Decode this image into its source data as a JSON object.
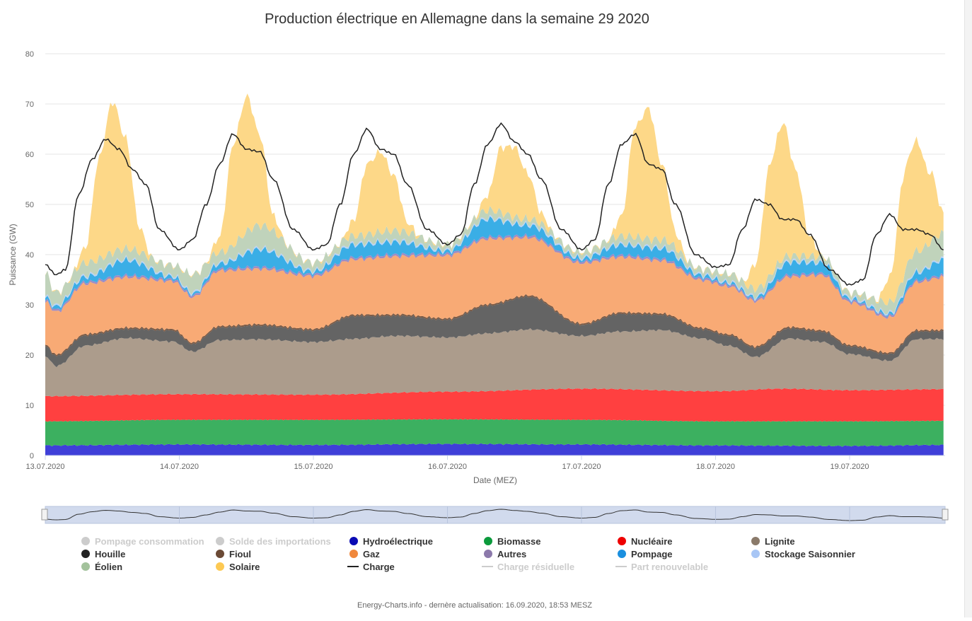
{
  "chart_data": {
    "type": "area",
    "title": "Production électrique en Allemagne dans la semaine 29 2020",
    "xlabel": "Date (MEZ)",
    "ylabel": "Puissance (GW)",
    "ylim": [
      0,
      80
    ],
    "yticks": [
      0,
      10,
      20,
      30,
      40,
      50,
      60,
      70,
      80
    ],
    "xlim_days": [
      0,
      6.7
    ],
    "xticks": [
      "13.07.2020",
      "14.07.2020",
      "15.07.2020",
      "16.07.2020",
      "17.07.2020",
      "18.07.2020",
      "19.07.2020"
    ],
    "grid": true,
    "legend_position": "bottom",
    "footer": "Energy-Charts.info - dernère actualisation: 16.09.2020, 18:53 MESZ",
    "legend": [
      {
        "name": "Pompage consommation",
        "color": "#cccccc",
        "visible": false,
        "symbol": "dot"
      },
      {
        "name": "Solde des importations",
        "color": "#cccccc",
        "visible": false,
        "symbol": "dot"
      },
      {
        "name": "Hydroélectrique",
        "color": "#0a0ab4",
        "visible": true,
        "symbol": "dot"
      },
      {
        "name": "Biomasse",
        "color": "#0b9a3c",
        "visible": true,
        "symbol": "dot"
      },
      {
        "name": "Nucléaire",
        "color": "#ee0000",
        "visible": true,
        "symbol": "dot"
      },
      {
        "name": "Lignite",
        "color": "#8a7a6a",
        "visible": true,
        "symbol": "dot"
      },
      {
        "name": "Houille",
        "color": "#222222",
        "visible": true,
        "symbol": "dot"
      },
      {
        "name": "Fioul",
        "color": "#6b4a35",
        "visible": true,
        "symbol": "dot"
      },
      {
        "name": "Gaz",
        "color": "#f0883c",
        "visible": true,
        "symbol": "dot"
      },
      {
        "name": "Autres",
        "color": "#8c79ab",
        "visible": true,
        "symbol": "dot"
      },
      {
        "name": "Pompage",
        "color": "#1a8fdf",
        "visible": true,
        "symbol": "dot"
      },
      {
        "name": "Stockage Saisonnier",
        "color": "#a8c6f5",
        "visible": true,
        "symbol": "dot"
      },
      {
        "name": "Éolien",
        "color": "#a3c29c",
        "visible": true,
        "symbol": "dot"
      },
      {
        "name": "Solaire",
        "color": "#fdc953",
        "visible": true,
        "symbol": "dot"
      },
      {
        "name": "Charge",
        "color": "#222222",
        "visible": true,
        "symbol": "line"
      },
      {
        "name": "Charge résiduelle",
        "color": "#cccccc",
        "visible": false,
        "symbol": "line"
      },
      {
        "name": "Part renouvelable",
        "color": "#cccccc",
        "visible": false,
        "symbol": "line"
      }
    ],
    "stack": [
      {
        "name": "Hydroélectrique",
        "color": "#3f3fd8",
        "values": [
          [
            0,
            2.0
          ],
          [
            1,
            2.2
          ],
          [
            2,
            2.1
          ],
          [
            3,
            2.3
          ],
          [
            4,
            2.2
          ],
          [
            5,
            2.0
          ],
          [
            6,
            1.9
          ],
          [
            6.7,
            2.1
          ]
        ]
      },
      {
        "name": "Biomasse",
        "color": "#3cb060",
        "values": [
          [
            0,
            4.8
          ],
          [
            1,
            4.9
          ],
          [
            2,
            5.0
          ],
          [
            3,
            4.9
          ],
          [
            4,
            4.9
          ],
          [
            5,
            4.8
          ],
          [
            6,
            4.9
          ],
          [
            6.7,
            4.8
          ]
        ]
      },
      {
        "name": "Nucléaire",
        "color": "#ff4040",
        "values": [
          [
            0,
            5.0
          ],
          [
            1,
            5.1
          ],
          [
            2,
            5.0
          ],
          [
            3,
            5.5
          ],
          [
            4,
            6.2
          ],
          [
            5,
            6.0
          ],
          [
            5.5,
            6.5
          ],
          [
            6,
            6.2
          ],
          [
            6.7,
            6.3
          ]
        ]
      },
      {
        "name": "Lignite",
        "color": "#ac9c8c",
        "values": [
          [
            0,
            8.0
          ],
          [
            0.08,
            6.0
          ],
          [
            0.3,
            10.0
          ],
          [
            0.6,
            11.3
          ],
          [
            0.95,
            10.5
          ],
          [
            1.1,
            8.5
          ],
          [
            1.3,
            10.8
          ],
          [
            1.6,
            11.0
          ],
          [
            2.0,
            10.5
          ],
          [
            2.3,
            11.0
          ],
          [
            2.6,
            11.3
          ],
          [
            3.0,
            10.8
          ],
          [
            3.3,
            11.5
          ],
          [
            3.6,
            12.0
          ],
          [
            4.0,
            10.5
          ],
          [
            4.3,
            11.5
          ],
          [
            4.6,
            12.0
          ],
          [
            4.9,
            10.5
          ],
          [
            5.1,
            9.0
          ],
          [
            5.3,
            6.5
          ],
          [
            5.55,
            10.0
          ],
          [
            5.8,
            9.5
          ],
          [
            6.0,
            7.2
          ],
          [
            6.3,
            5.8
          ],
          [
            6.5,
            10.0
          ],
          [
            6.7,
            10.0
          ]
        ]
      },
      {
        "name": "Houille",
        "color": "#646464",
        "values": [
          [
            0,
            2.0
          ],
          [
            0.08,
            2.0
          ],
          [
            0.3,
            2.0
          ],
          [
            0.6,
            1.8
          ],
          [
            0.95,
            2.2
          ],
          [
            1.1,
            1.5
          ],
          [
            1.3,
            2.5
          ],
          [
            1.6,
            2.7
          ],
          [
            2.0,
            2.3
          ],
          [
            2.3,
            4.5
          ],
          [
            2.6,
            4.0
          ],
          [
            3.0,
            3.5
          ],
          [
            3.3,
            5.5
          ],
          [
            3.6,
            6.5
          ],
          [
            4.0,
            2.2
          ],
          [
            4.3,
            3.5
          ],
          [
            4.6,
            3.0
          ],
          [
            4.9,
            1.8
          ],
          [
            5.1,
            2.0
          ],
          [
            5.3,
            1.8
          ],
          [
            5.55,
            2.0
          ],
          [
            5.8,
            2.0
          ],
          [
            6.0,
            1.5
          ],
          [
            6.3,
            1.3
          ],
          [
            6.5,
            1.5
          ],
          [
            6.7,
            1.5
          ]
        ]
      },
      {
        "name": "Fioul",
        "color": "#7b5a45",
        "values": [
          [
            0,
            0.3
          ],
          [
            6.7,
            0.3
          ]
        ]
      },
      {
        "name": "Gaz",
        "color": "#f8aa75",
        "values": [
          [
            0,
            8.5
          ],
          [
            0.08,
            8.5
          ],
          [
            0.3,
            10.0
          ],
          [
            0.6,
            10.0
          ],
          [
            0.95,
            9.5
          ],
          [
            1.1,
            9.0
          ],
          [
            1.3,
            11.0
          ],
          [
            1.6,
            11.0
          ],
          [
            2.0,
            10.5
          ],
          [
            2.3,
            11.0
          ],
          [
            2.6,
            11.5
          ],
          [
            3.0,
            12.5
          ],
          [
            3.3,
            13.0
          ],
          [
            3.6,
            11.5
          ],
          [
            4.0,
            12.0
          ],
          [
            4.3,
            11.0
          ],
          [
            4.6,
            10.5
          ],
          [
            4.9,
            9.5
          ],
          [
            5.1,
            9.5
          ],
          [
            5.3,
            9.0
          ],
          [
            5.55,
            10.0
          ],
          [
            5.8,
            11.0
          ],
          [
            6.0,
            8.5
          ],
          [
            6.3,
            7.0
          ],
          [
            6.5,
            9.5
          ],
          [
            6.7,
            10.5
          ]
        ]
      },
      {
        "name": "Autres",
        "color": "#9d8cc4",
        "values": [
          [
            0,
            0.4
          ],
          [
            6.7,
            0.4
          ]
        ]
      },
      {
        "name": "Pompage",
        "color": "#3aaee6",
        "values": [
          [
            0,
            0.5
          ],
          [
            0.3,
            1.0
          ],
          [
            0.6,
            3.0
          ],
          [
            0.95,
            0.5
          ],
          [
            1.1,
            0.3
          ],
          [
            1.3,
            1.0
          ],
          [
            1.6,
            3.5
          ],
          [
            2.0,
            0.5
          ],
          [
            2.3,
            2.5
          ],
          [
            2.6,
            2.5
          ],
          [
            3.0,
            0.5
          ],
          [
            3.3,
            3.5
          ],
          [
            3.6,
            2.0
          ],
          [
            4.0,
            0.5
          ],
          [
            4.3,
            2.0
          ],
          [
            4.6,
            2.0
          ],
          [
            4.9,
            0.5
          ],
          [
            5.1,
            0.3
          ],
          [
            5.3,
            0.3
          ],
          [
            5.55,
            2.5
          ],
          [
            5.8,
            2.0
          ],
          [
            6.0,
            0.3
          ],
          [
            6.3,
            0.3
          ],
          [
            6.5,
            1.5
          ],
          [
            6.7,
            3.0
          ]
        ]
      },
      {
        "name": "Stockage Saisonnier",
        "color": "#b7d2f7",
        "values": [
          [
            0,
            0.3
          ],
          [
            6.7,
            0.3
          ]
        ]
      },
      {
        "name": "Éolien",
        "color": "#c0d3bb",
        "values": [
          [
            0,
            4.5
          ],
          [
            0.08,
            2.5
          ],
          [
            0.3,
            2.5
          ],
          [
            0.6,
            2.0
          ],
          [
            0.95,
            2.0
          ],
          [
            1.1,
            3.5
          ],
          [
            1.3,
            2.0
          ],
          [
            1.6,
            4.5
          ],
          [
            2.0,
            1.5
          ],
          [
            2.3,
            1.5
          ],
          [
            2.6,
            2.0
          ],
          [
            3.0,
            1.0
          ],
          [
            3.3,
            1.5
          ],
          [
            3.6,
            1.0
          ],
          [
            4.0,
            1.0
          ],
          [
            4.3,
            1.5
          ],
          [
            4.6,
            1.5
          ],
          [
            4.9,
            1.0
          ],
          [
            5.1,
            1.5
          ],
          [
            5.3,
            1.5
          ],
          [
            5.55,
            1.0
          ],
          [
            5.8,
            1.0
          ],
          [
            6.0,
            1.0
          ],
          [
            6.3,
            2.0
          ],
          [
            6.5,
            4.0
          ],
          [
            6.7,
            5.0
          ]
        ]
      },
      {
        "name": "Solaire",
        "color": "#fdd888",
        "values": [
          [
            0,
            0
          ],
          [
            0.2,
            0
          ],
          [
            0.3,
            3
          ],
          [
            0.4,
            20
          ],
          [
            0.5,
            30
          ],
          [
            0.6,
            22
          ],
          [
            0.7,
            5
          ],
          [
            0.8,
            0
          ],
          [
            1.2,
            0
          ],
          [
            1.3,
            3
          ],
          [
            1.4,
            20
          ],
          [
            1.5,
            27
          ],
          [
            1.6,
            18
          ],
          [
            1.7,
            3
          ],
          [
            1.8,
            0
          ],
          [
            2.2,
            0
          ],
          [
            2.3,
            3
          ],
          [
            2.4,
            14
          ],
          [
            2.5,
            16
          ],
          [
            2.6,
            11
          ],
          [
            2.7,
            2
          ],
          [
            2.8,
            0
          ],
          [
            3.2,
            0
          ],
          [
            3.3,
            3
          ],
          [
            3.4,
            13
          ],
          [
            3.5,
            14
          ],
          [
            3.6,
            9
          ],
          [
            3.7,
            2
          ],
          [
            3.8,
            0
          ],
          [
            4.2,
            0
          ],
          [
            4.3,
            4
          ],
          [
            4.4,
            22
          ],
          [
            4.5,
            26
          ],
          [
            4.6,
            15
          ],
          [
            4.7,
            3
          ],
          [
            4.8,
            0
          ],
          [
            5.2,
            0
          ],
          [
            5.3,
            5
          ],
          [
            5.4,
            22
          ],
          [
            5.5,
            27
          ],
          [
            5.6,
            17
          ],
          [
            5.7,
            4
          ],
          [
            5.8,
            0
          ],
          [
            6.2,
            0
          ],
          [
            6.3,
            5
          ],
          [
            6.4,
            20
          ],
          [
            6.5,
            22
          ],
          [
            6.6,
            14
          ],
          [
            6.7,
            4
          ]
        ]
      }
    ],
    "series": [
      {
        "name": "Charge",
        "color": "#222222",
        "values": [
          [
            0,
            38
          ],
          [
            0.08,
            36
          ],
          [
            0.15,
            37
          ],
          [
            0.25,
            52
          ],
          [
            0.35,
            59
          ],
          [
            0.45,
            63
          ],
          [
            0.55,
            61
          ],
          [
            0.65,
            57
          ],
          [
            0.75,
            54
          ],
          [
            0.85,
            45
          ],
          [
            1.0,
            41
          ],
          [
            1.1,
            43
          ],
          [
            1.2,
            50
          ],
          [
            1.3,
            58
          ],
          [
            1.4,
            64
          ],
          [
            1.5,
            61
          ],
          [
            1.6,
            60.5
          ],
          [
            1.7,
            55
          ],
          [
            1.85,
            45
          ],
          [
            2.0,
            41
          ],
          [
            2.1,
            42
          ],
          [
            2.2,
            50
          ],
          [
            2.3,
            60
          ],
          [
            2.4,
            65
          ],
          [
            2.5,
            61
          ],
          [
            2.6,
            60
          ],
          [
            2.7,
            54
          ],
          [
            2.85,
            45
          ],
          [
            3.0,
            42
          ],
          [
            3.1,
            44
          ],
          [
            3.2,
            54
          ],
          [
            3.3,
            62
          ],
          [
            3.4,
            66
          ],
          [
            3.5,
            62.5
          ],
          [
            3.6,
            60
          ],
          [
            3.7,
            55
          ],
          [
            3.85,
            45
          ],
          [
            4.0,
            41
          ],
          [
            4.1,
            43
          ],
          [
            4.2,
            54
          ],
          [
            4.3,
            62
          ],
          [
            4.4,
            64
          ],
          [
            4.5,
            58
          ],
          [
            4.6,
            57
          ],
          [
            4.7,
            50
          ],
          [
            4.85,
            40
          ],
          [
            5.0,
            37.5
          ],
          [
            5.1,
            38
          ],
          [
            5.2,
            45
          ],
          [
            5.3,
            51
          ],
          [
            5.4,
            50
          ],
          [
            5.5,
            47
          ],
          [
            5.6,
            47
          ],
          [
            5.7,
            44
          ],
          [
            5.85,
            37
          ],
          [
            6.0,
            34
          ],
          [
            6.1,
            35
          ],
          [
            6.2,
            44
          ],
          [
            6.3,
            48
          ],
          [
            6.4,
            45
          ],
          [
            6.5,
            45
          ],
          [
            6.6,
            44
          ],
          [
            6.7,
            41
          ]
        ]
      }
    ]
  }
}
